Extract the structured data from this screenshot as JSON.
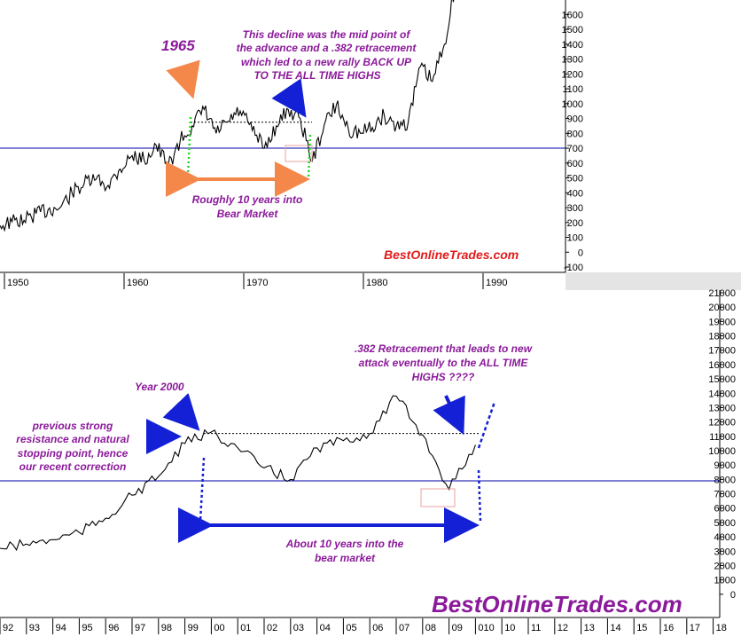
{
  "colors": {
    "price_line": "#000000",
    "support_line": "#0000aa",
    "annotation_text": "#8b1a9a",
    "brand_top": "#e21b1b",
    "brand_bottom": "#8b1a9a",
    "arrow_orange": "#f4874a",
    "arrow_blue": "#1420d6",
    "marker_green": "#1ed61e",
    "marker_blue": "#1420d6",
    "highlight_box": "#e8a0a0",
    "axis_panel": "#e4e4e4"
  },
  "chart_data": [
    {
      "type": "line",
      "ylim": [
        -100,
        1650
      ],
      "y_ticks": [
        "1600",
        "1500",
        "1400",
        "1300",
        "1200",
        "1100",
        "1000",
        "900",
        "800",
        "700",
        "600",
        "500",
        "400",
        "300",
        "200",
        "100",
        "0",
        "-100"
      ],
      "x_ticks": [
        "1950",
        "1960",
        "1970",
        "1980",
        "1990"
      ],
      "x": [
        1948,
        1949,
        1950,
        1951,
        1952,
        1953,
        1954,
        1955,
        1956,
        1957,
        1958,
        1959,
        1960,
        1961,
        1962,
        1963,
        1964,
        1965,
        1966,
        1967,
        1968,
        1969,
        1970,
        1971,
        1972,
        1973,
        1974,
        1975,
        1976,
        1977,
        1978,
        1979,
        1980,
        1981,
        1982,
        1983,
        1984,
        1985,
        1986
      ],
      "series": [
        {
          "values": [
            180,
            205,
            215,
            260,
            285,
            300,
            400,
            460,
            490,
            450,
            560,
            650,
            620,
            720,
            580,
            750,
            850,
            960,
            800,
            880,
            950,
            820,
            700,
            850,
            960,
            900,
            610,
            860,
            990,
            830,
            800,
            840,
            920,
            850,
            880,
            1250,
            1150,
            1400,
            1850
          ]
        }
      ],
      "reference_level": 700,
      "retracement_level": 875,
      "annotations": {
        "year_label": "1965",
        "decline_note": [
          "This decline was the mid point of",
          "the advance and a .382 retracement",
          "which led to a new rally BACK UP",
          "TO THE ALL TIME HIGHS"
        ],
        "span_note": [
          "Roughly 10 years into",
          "Bear Market"
        ],
        "brand": "BestOnlineTrades.com"
      }
    },
    {
      "type": "line",
      "ylim": [
        -1000,
        21000
      ],
      "y_ticks": [
        "21000",
        "20000",
        "19000",
        "18000",
        "17000",
        "16000",
        "15000",
        "14000",
        "13000",
        "12000",
        "11000",
        "10000",
        "9000",
        "8000",
        "7000",
        "6000",
        "5000",
        "4000",
        "3000",
        "2000",
        "1000",
        "0"
      ],
      "x_ticks": [
        "92",
        "93",
        "94",
        "95",
        "96",
        "97",
        "98",
        "99",
        "00",
        "01",
        "02",
        "03",
        "04",
        "05",
        "06",
        "07",
        "08",
        "09",
        "010",
        "10",
        "11",
        "12",
        "13",
        "14",
        "15",
        "16",
        "17",
        "18"
      ],
      "x": [
        1992,
        1993,
        1994,
        1995,
        1996,
        1997,
        1998,
        1999,
        2000,
        2001,
        2002,
        2003,
        2004,
        2005,
        2006,
        2007,
        2008,
        2009,
        2010
      ],
      "series": [
        {
          "values": [
            3200,
            3500,
            3800,
            4300,
            5300,
            6900,
            8200,
            10500,
            11300,
            10200,
            8800,
            8000,
            10200,
            10700,
            11200,
            13800,
            11100,
            7300,
            10400
          ]
        }
      ],
      "reference_level": 7900,
      "retracement_level": 11200,
      "annotations": {
        "year_note": "Year 2000",
        "resistance_note": [
          "previous strong",
          "resistance and natural",
          "stopping point, hence",
          "our recent correction"
        ],
        "retracement_note": [
          ".382 Retracement that leads to new",
          "attack eventually to the ALL TIME",
          "HIGHS ????"
        ],
        "span_note": [
          "About 10 years into the",
          "bear market"
        ],
        "brand": "BestOnlineTrades.com"
      }
    }
  ]
}
